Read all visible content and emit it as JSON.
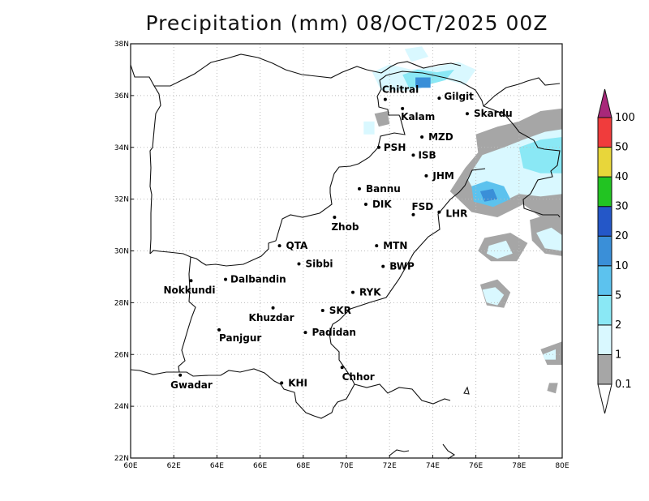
{
  "title": "Precipitation (mm) 08/OCT/2025 00Z",
  "map": {
    "lon_range": [
      60,
      80
    ],
    "lat_range": [
      22,
      38
    ],
    "grid": true,
    "x_ticks": [
      "60E",
      "62E",
      "64E",
      "66E",
      "68E",
      "70E",
      "72E",
      "74E",
      "76E",
      "78E",
      "80E"
    ],
    "y_ticks": [
      "22N",
      "24N",
      "26N",
      "28N",
      "30N",
      "32N",
      "34N",
      "36N",
      "38N"
    ]
  },
  "cities": [
    {
      "name": "Chitral",
      "lon": 71.8,
      "lat": 35.85
    },
    {
      "name": "Kalam",
      "lon": 72.6,
      "lat": 35.5
    },
    {
      "name": "Gilgit",
      "lon": 74.3,
      "lat": 35.9
    },
    {
      "name": "Skardu",
      "lon": 75.6,
      "lat": 35.3
    },
    {
      "name": "MZD",
      "lon": 73.5,
      "lat": 34.4
    },
    {
      "name": "PSH",
      "lon": 71.5,
      "lat": 34.0
    },
    {
      "name": "ISB",
      "lon": 73.1,
      "lat": 33.7
    },
    {
      "name": "JHM",
      "lon": 73.7,
      "lat": 32.9
    },
    {
      "name": "Bannu",
      "lon": 70.6,
      "lat": 32.4
    },
    {
      "name": "DIK",
      "lon": 70.9,
      "lat": 31.8
    },
    {
      "name": "FSD",
      "lon": 73.1,
      "lat": 31.4
    },
    {
      "name": "LHR",
      "lon": 74.3,
      "lat": 31.5
    },
    {
      "name": "Zhob",
      "lon": 69.45,
      "lat": 31.3
    },
    {
      "name": "QTA",
      "lon": 66.9,
      "lat": 30.2
    },
    {
      "name": "MTN",
      "lon": 71.4,
      "lat": 30.2
    },
    {
      "name": "Sibbi",
      "lon": 67.8,
      "lat": 29.5
    },
    {
      "name": "BWP",
      "lon": 71.7,
      "lat": 29.4
    },
    {
      "name": "Nokkundi",
      "lon": 62.8,
      "lat": 28.85
    },
    {
      "name": "Dalbandin",
      "lon": 64.4,
      "lat": 28.9
    },
    {
      "name": "RYK",
      "lon": 70.3,
      "lat": 28.4
    },
    {
      "name": "Khuzdar",
      "lon": 66.6,
      "lat": 27.8
    },
    {
      "name": "SKR",
      "lon": 68.9,
      "lat": 27.7
    },
    {
      "name": "Padidan",
      "lon": 68.1,
      "lat": 26.85
    },
    {
      "name": "Panjgur",
      "lon": 64.1,
      "lat": 26.95
    },
    {
      "name": "Chhor",
      "lon": 69.8,
      "lat": 25.5
    },
    {
      "name": "KHI",
      "lon": 67.0,
      "lat": 24.9
    },
    {
      "name": "Gwadar",
      "lon": 62.3,
      "lat": 25.2
    }
  ],
  "colorbar": {
    "levels": [
      "0.1",
      "1",
      "2",
      "5",
      "10",
      "20",
      "30",
      "40",
      "50",
      "100"
    ],
    "colors": [
      "#a6a6a6",
      "#d9f8ff",
      "#8ae8f5",
      "#5cc2ee",
      "#3a8fd8",
      "#2457c8",
      "#22c422",
      "#e8d63a",
      "#f03c3c",
      "#a8287a"
    ]
  },
  "precip_areas": [
    {
      "level": 1,
      "coords": [
        [
          71.2,
          36.9
        ],
        [
          72.0,
          37.2
        ],
        [
          73.0,
          37.0
        ],
        [
          74.0,
          37.1
        ],
        [
          75.2,
          37.3
        ],
        [
          76.0,
          37.0
        ],
        [
          75.5,
          36.4
        ],
        [
          74.3,
          36.7
        ],
        [
          73.3,
          36.2
        ],
        [
          72.4,
          36.2
        ],
        [
          71.6,
          36.2
        ]
      ]
    },
    {
      "level": 2,
      "coords": [
        [
          72.6,
          36.8
        ],
        [
          73.3,
          37.0
        ],
        [
          74.2,
          36.9
        ],
        [
          75.0,
          37.0
        ],
        [
          74.6,
          36.6
        ],
        [
          73.7,
          36.4
        ],
        [
          72.9,
          36.3
        ]
      ]
    },
    {
      "level": 4,
      "coords": [
        [
          73.2,
          36.7
        ],
        [
          73.9,
          36.7
        ],
        [
          73.9,
          36.3
        ],
        [
          73.2,
          36.3
        ]
      ]
    },
    {
      "level": 1,
      "coords": [
        [
          72.7,
          37.8
        ],
        [
          73.5,
          37.9
        ],
        [
          73.8,
          37.5
        ],
        [
          73.0,
          37.3
        ]
      ]
    },
    {
      "level": 0,
      "coords": [
        [
          71.3,
          35.3
        ],
        [
          71.9,
          35.4
        ],
        [
          72.0,
          34.9
        ],
        [
          71.5,
          34.8
        ]
      ]
    },
    {
      "level": 1,
      "coords": [
        [
          70.8,
          35.0
        ],
        [
          71.3,
          35.0
        ],
        [
          71.3,
          34.5
        ],
        [
          70.8,
          34.5
        ]
      ]
    },
    {
      "level": 0,
      "coords": [
        [
          76.0,
          34.5
        ],
        [
          77.0,
          34.8
        ],
        [
          78.0,
          35.0
        ],
        [
          79.0,
          35.4
        ],
        [
          80.0,
          35.5
        ],
        [
          80.0,
          31.0
        ],
        [
          79.0,
          31.3
        ],
        [
          78.2,
          31.8
        ],
        [
          77.0,
          31.3
        ],
        [
          75.8,
          31.5
        ],
        [
          74.8,
          32.3
        ],
        [
          75.5,
          33.2
        ],
        [
          76.1,
          33.8
        ]
      ]
    },
    {
      "level": 1,
      "coords": [
        [
          76.3,
          33.7
        ],
        [
          77.3,
          34.0
        ],
        [
          78.2,
          34.3
        ],
        [
          79.2,
          34.6
        ],
        [
          80.0,
          34.7
        ],
        [
          80.0,
          32.2
        ],
        [
          79.0,
          32.1
        ],
        [
          78.0,
          32.2
        ],
        [
          77.0,
          31.8
        ],
        [
          76.0,
          32.2
        ],
        [
          75.6,
          32.8
        ]
      ]
    },
    {
      "level": 2,
      "coords": [
        [
          78.0,
          34.0
        ],
        [
          79.0,
          34.3
        ],
        [
          80.0,
          34.4
        ],
        [
          80.0,
          33.0
        ],
        [
          79.0,
          33.0
        ],
        [
          78.2,
          33.2
        ]
      ]
    },
    {
      "level": 3,
      "coords": [
        [
          75.8,
          32.5
        ],
        [
          76.5,
          32.7
        ],
        [
          77.3,
          32.5
        ],
        [
          77.6,
          32.0
        ],
        [
          76.8,
          31.7
        ],
        [
          75.9,
          31.9
        ]
      ]
    },
    {
      "level": 4,
      "coords": [
        [
          76.2,
          32.3
        ],
        [
          76.8,
          32.4
        ],
        [
          77.0,
          32.0
        ],
        [
          76.4,
          31.9
        ]
      ]
    },
    {
      "level": 0,
      "coords": [
        [
          76.4,
          30.5
        ],
        [
          77.6,
          30.7
        ],
        [
          78.4,
          30.3
        ],
        [
          77.9,
          29.6
        ],
        [
          76.7,
          29.6
        ],
        [
          76.1,
          30.0
        ]
      ]
    },
    {
      "level": 1,
      "coords": [
        [
          76.6,
          30.2
        ],
        [
          77.4,
          30.4
        ],
        [
          77.7,
          29.9
        ],
        [
          77.0,
          29.7
        ],
        [
          76.5,
          29.9
        ]
      ]
    },
    {
      "level": 0,
      "coords": [
        [
          76.2,
          28.7
        ],
        [
          77.0,
          28.9
        ],
        [
          77.6,
          28.4
        ],
        [
          77.3,
          27.8
        ],
        [
          76.5,
          27.9
        ]
      ]
    },
    {
      "level": 1,
      "coords": [
        [
          76.3,
          28.5
        ],
        [
          76.9,
          28.6
        ],
        [
          77.3,
          28.3
        ],
        [
          77.0,
          27.9
        ],
        [
          76.5,
          28.0
        ]
      ]
    },
    {
      "level": 0,
      "coords": [
        [
          78.5,
          31.2
        ],
        [
          79.3,
          31.4
        ],
        [
          80.0,
          31.3
        ],
        [
          80.0,
          29.8
        ],
        [
          79.2,
          29.9
        ],
        [
          78.6,
          30.4
        ]
      ]
    },
    {
      "level": 1,
      "coords": [
        [
          78.8,
          30.7
        ],
        [
          79.5,
          30.9
        ],
        [
          80.0,
          30.6
        ],
        [
          80.0,
          30.0
        ],
        [
          79.2,
          30.1
        ]
      ]
    },
    {
      "level": 0,
      "coords": [
        [
          79.0,
          26.2
        ],
        [
          80.0,
          26.5
        ],
        [
          80.0,
          25.6
        ],
        [
          79.3,
          25.6
        ]
      ]
    },
    {
      "level": 1,
      "coords": [
        [
          79.1,
          26.0
        ],
        [
          79.7,
          26.2
        ],
        [
          79.7,
          25.8
        ],
        [
          79.2,
          25.8
        ]
      ]
    },
    {
      "level": 0,
      "coords": [
        [
          79.4,
          24.9
        ],
        [
          79.8,
          24.9
        ],
        [
          79.7,
          24.5
        ],
        [
          79.3,
          24.6
        ]
      ]
    }
  ]
}
